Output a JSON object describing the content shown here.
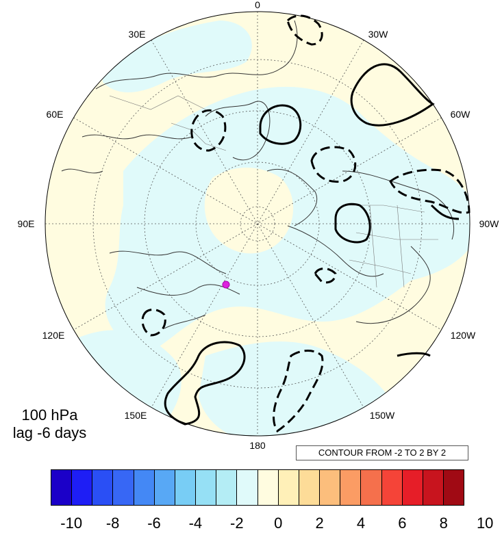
{
  "panel": {
    "level": "100 hPa",
    "lag": "lag -6 days"
  },
  "contour_info": "CONTOUR FROM -2 TO 2 BY 2",
  "longitude_labels": [
    "0",
    "30W",
    "60W",
    "90W",
    "120W",
    "150W",
    "180",
    "150E",
    "120E",
    "90E",
    "60E",
    "30E"
  ],
  "colorbar": {
    "colors": [
      "#1b00c8",
      "#1e1ef5",
      "#2a4ff5",
      "#3767f5",
      "#4488f5",
      "#58a8f5",
      "#78cdf5",
      "#96e0f5",
      "#b4edf5",
      "#e0fafa",
      "#fffce0",
      "#fff0b8",
      "#fddc98",
      "#fcbe7c",
      "#fb9c64",
      "#f5704c",
      "#f54438",
      "#e61e28",
      "#c8141e",
      "#a00a14"
    ],
    "labels": [
      "-10",
      "-8",
      "-6",
      "-4",
      "-2",
      "0",
      "2",
      "4",
      "6",
      "8",
      "10"
    ]
  },
  "field_colors": {
    "positive": "#fffce0",
    "negative": "#e0fafa"
  },
  "marker_color": "#dd22dd"
}
